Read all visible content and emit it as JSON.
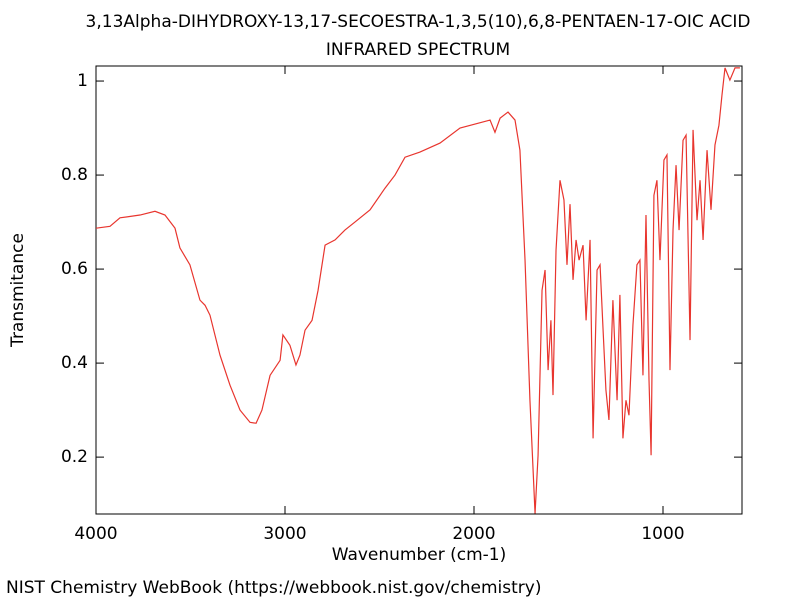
{
  "chart_data": {
    "type": "line",
    "title": "3,13Alpha-DIHYDROXY-13,17-SECOESTRA-1,3,5(10),6,8-PENTAEN-17-OIC ACID",
    "subtitle": "INFRARED SPECTRUM",
    "x_label": "Wavenumber (cm-1)",
    "y_label": "Transmitance",
    "source": "NIST Chemistry WebBook (https://webbook.nist.gov/chemistry)",
    "color": "#e8352e",
    "xlim": [
      4000,
      582
    ],
    "ylim": [
      0.079,
      1.032
    ],
    "xticks": [
      4000,
      3000,
      2000,
      1000
    ],
    "yticks": [
      0.2,
      0.4,
      0.6,
      0.8,
      1
    ],
    "x": [
      4000,
      3926,
      3873,
      3767,
      3688,
      3635,
      3582,
      3556,
      3503,
      3450,
      3423,
      3397,
      3344,
      3291,
      3238,
      3185,
      3153,
      3122,
      3079,
      3026,
      3011,
      2974,
      2942,
      2921,
      2894,
      2857,
      2825,
      2788,
      2735,
      2683,
      2630,
      2550,
      2471,
      2418,
      2365,
      2286,
      2180,
      2074,
      1915,
      1889,
      1862,
      1820,
      1783,
      1757,
      1730,
      1704,
      1677,
      1661,
      1640,
      1624,
      1608,
      1593,
      1582,
      1566,
      1545,
      1524,
      1508,
      1492,
      1476,
      1460,
      1444,
      1423,
      1407,
      1386,
      1370,
      1349,
      1333,
      1317,
      1302,
      1286,
      1265,
      1243,
      1228,
      1212,
      1196,
      1180,
      1159,
      1138,
      1122,
      1106,
      1090,
      1074,
      1063,
      1048,
      1032,
      1016,
      995,
      979,
      963,
      947,
      931,
      915,
      894,
      878,
      857,
      841,
      820,
      804,
      788,
      767,
      746,
      725,
      704,
      688,
      672,
      646,
      619,
      593
    ],
    "values": [
      0.687,
      0.691,
      0.709,
      0.715,
      0.723,
      0.715,
      0.687,
      0.645,
      0.609,
      0.534,
      0.523,
      0.502,
      0.417,
      0.353,
      0.3,
      0.274,
      0.272,
      0.3,
      0.374,
      0.406,
      0.46,
      0.438,
      0.396,
      0.417,
      0.47,
      0.491,
      0.555,
      0.651,
      0.662,
      0.683,
      0.7,
      0.726,
      0.772,
      0.8,
      0.838,
      0.849,
      0.868,
      0.9,
      0.917,
      0.891,
      0.921,
      0.934,
      0.917,
      0.853,
      0.619,
      0.321,
      0.08,
      0.204,
      0.555,
      0.598,
      0.385,
      0.491,
      0.332,
      0.64,
      0.789,
      0.747,
      0.609,
      0.738,
      0.577,
      0.662,
      0.619,
      0.651,
      0.491,
      0.662,
      0.24,
      0.598,
      0.609,
      0.47,
      0.343,
      0.279,
      0.534,
      0.321,
      0.545,
      0.24,
      0.321,
      0.289,
      0.481,
      0.609,
      0.619,
      0.374,
      0.715,
      0.364,
      0.204,
      0.757,
      0.789,
      0.619,
      0.832,
      0.843,
      0.385,
      0.683,
      0.821,
      0.683,
      0.874,
      0.885,
      0.449,
      0.896,
      0.704,
      0.789,
      0.662,
      0.853,
      0.726,
      0.864,
      0.906,
      0.97,
      1.028,
      1.002,
      1.028,
      1.028
    ]
  }
}
